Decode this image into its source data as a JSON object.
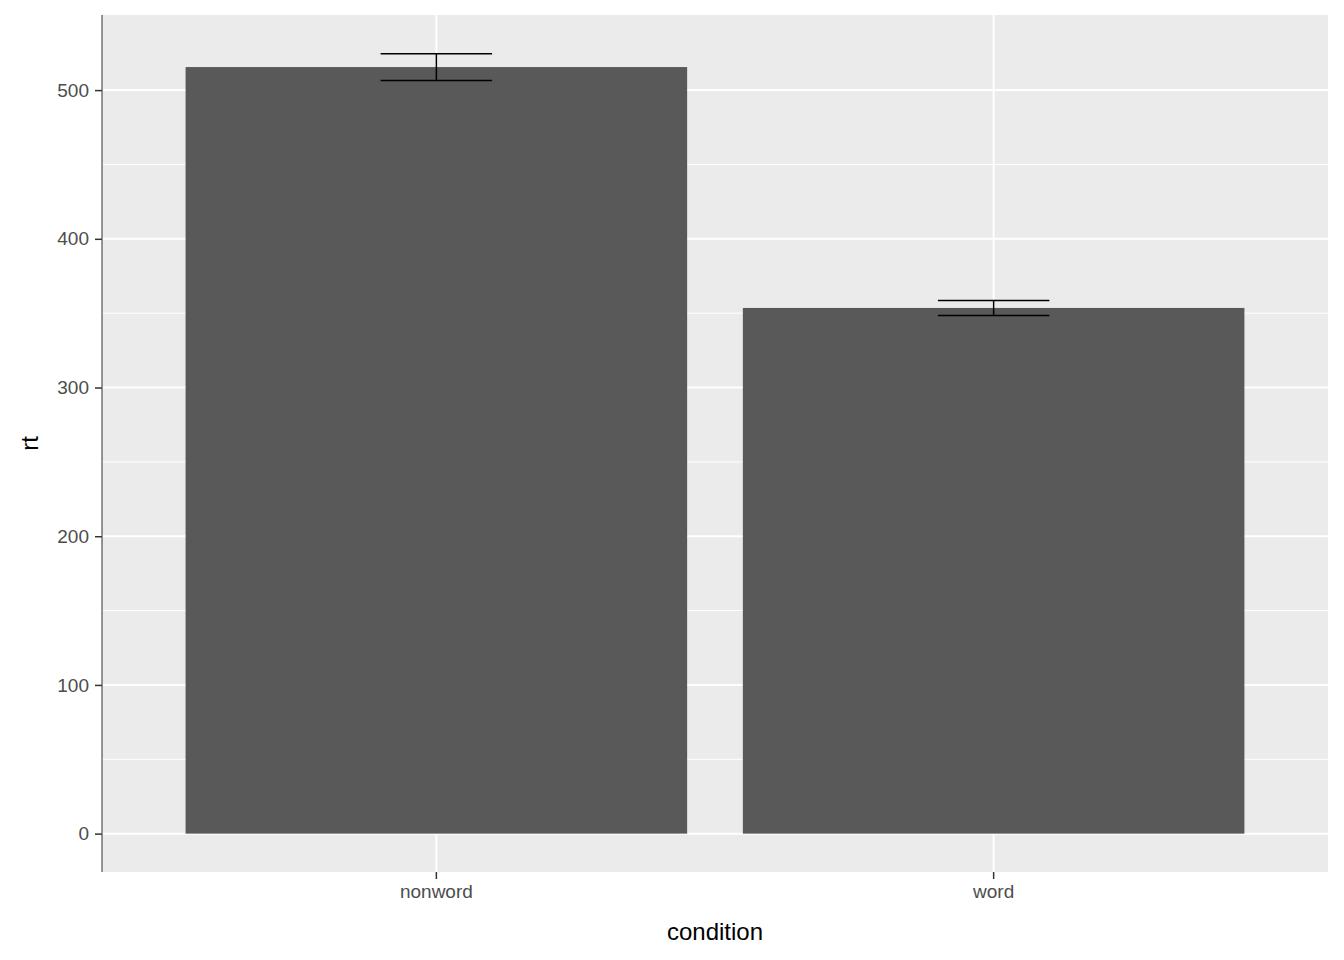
{
  "chart_data": {
    "type": "bar",
    "x_label": "condition",
    "y_label": "rt",
    "categories": [
      "nonword",
      "word"
    ],
    "values": [
      515.5,
      353.5
    ],
    "errors": [
      9,
      5
    ],
    "color": "#595959",
    "ylim": [
      -25.8,
      550.5
    ],
    "yticks": [
      0,
      100,
      200,
      300,
      400,
      500
    ],
    "grid": true
  }
}
